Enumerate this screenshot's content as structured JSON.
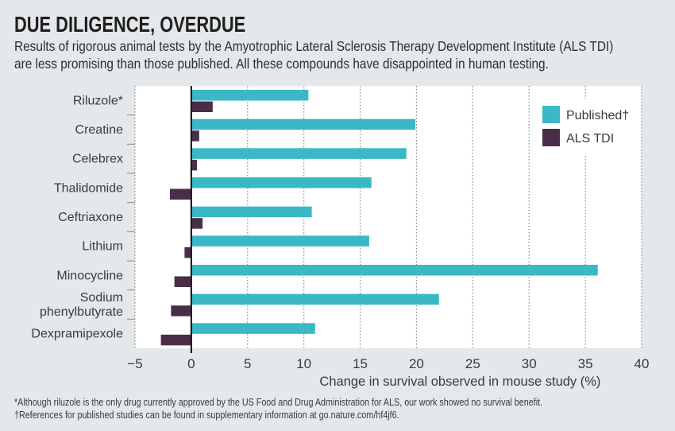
{
  "header": {
    "title": "DUE DILIGENCE, OVERDUE",
    "subtitle_lines": [
      "Results of rigorous animal tests by the Amyotrophic Lateral Sclerosis Therapy Development Institute (ALS TDI)",
      "are less promising than those published. All these compounds have disappointed in human testing."
    ]
  },
  "footnotes": [
    "*Although riluzole is the only drug currently approved by the US Food and Drug Administration for ALS, our work showed no survival benefit.",
    "†References for published studies can be found in supplementary information at go.nature.com/hf4jf6."
  ],
  "colors": {
    "published": "#3bb8c6",
    "als_tdi": "#4a2e48",
    "background": "#e4e8eb",
    "plot_background": "#ffffff"
  },
  "chart_data": {
    "type": "bar",
    "orientation": "horizontal",
    "title": "DUE DILIGENCE, OVERDUE",
    "xlabel": "Change in survival observed in mouse study (%)",
    "ylabel": "",
    "xlim": [
      -5,
      40
    ],
    "xticks": [
      -5,
      0,
      5,
      10,
      15,
      20,
      25,
      30,
      35,
      40
    ],
    "xtick_labels": [
      "−5",
      "0",
      "5",
      "10",
      "15",
      "20",
      "25",
      "30",
      "35",
      "40"
    ],
    "grid": "vertical dotted",
    "legend_position": "top-right",
    "categories": [
      [
        "Riluzole*"
      ],
      [
        "Creatine"
      ],
      [
        "Celebrex"
      ],
      [
        "Thalidomide"
      ],
      [
        "Ceftriaxone"
      ],
      [
        "Lithium"
      ],
      [
        "Minocycline"
      ],
      [
        "Sodium",
        "phenylbutyrate"
      ],
      [
        "Dexpramipexole"
      ]
    ],
    "series": [
      {
        "name": "Published†",
        "key": "published",
        "values": [
          10.4,
          19.9,
          19.1,
          16.0,
          10.7,
          15.8,
          36.1,
          22.0,
          11.0
        ]
      },
      {
        "name": "ALS TDI",
        "key": "als_tdi",
        "values": [
          1.9,
          0.7,
          0.5,
          -1.9,
          1.0,
          -0.6,
          -1.5,
          -1.8,
          -2.7
        ]
      }
    ]
  }
}
